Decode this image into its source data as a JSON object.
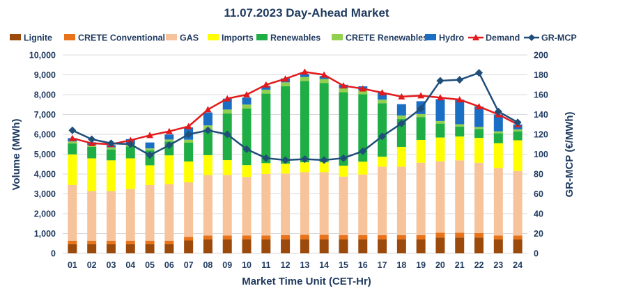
{
  "chart_data": {
    "type": "bar",
    "title": "11.07.2023  Day-Ahead Market",
    "xlabel": "Market Time Unit (CET-Hr)",
    "ylabel": "Volume (MWh)",
    "y2label": "GR-MCP (€/MWh)",
    "ylim": [
      0,
      10000
    ],
    "y2lim": [
      0,
      200
    ],
    "yticks": [
      "0",
      "1,000",
      "2,000",
      "3,000",
      "4,000",
      "5,000",
      "6,000",
      "7,000",
      "8,000",
      "9,000",
      "10,000"
    ],
    "y2ticks": [
      "0",
      "20",
      "40",
      "60",
      "80",
      "100",
      "120",
      "140",
      "160",
      "180",
      "200"
    ],
    "legend_position": "top",
    "categories": [
      "01",
      "02",
      "03",
      "04",
      "05",
      "06",
      "07",
      "08",
      "09",
      "10",
      "11",
      "12",
      "13",
      "14",
      "15",
      "16",
      "17",
      "18",
      "19",
      "20",
      "21",
      "22",
      "23",
      "24"
    ],
    "series": [
      {
        "name": "Lignite",
        "color": "#9c4a0c",
        "values": [
          460,
          460,
          460,
          460,
          460,
          460,
          650,
          700,
          700,
          700,
          700,
          700,
          700,
          700,
          700,
          700,
          700,
          700,
          700,
          800,
          800,
          800,
          700,
          700
        ]
      },
      {
        "name": "CRETE Conventional",
        "color": "#e8731a",
        "values": [
          180,
          180,
          180,
          180,
          180,
          180,
          180,
          200,
          200,
          200,
          200,
          220,
          240,
          240,
          220,
          220,
          220,
          220,
          220,
          240,
          240,
          220,
          200,
          200
        ]
      },
      {
        "name": "GAS",
        "color": "#f7c39a",
        "values": [
          2800,
          2500,
          2500,
          2600,
          2800,
          2850,
          2750,
          3050,
          3050,
          2950,
          3100,
          3100,
          3150,
          3150,
          2950,
          3050,
          3450,
          3450,
          3650,
          3600,
          3650,
          3550,
          3400,
          3250
        ]
      },
      {
        "name": "Imports",
        "color": "#ffff00",
        "values": [
          1550,
          1650,
          1550,
          1550,
          1000,
          1450,
          1050,
          1000,
          750,
          600,
          550,
          500,
          500,
          500,
          550,
          650,
          500,
          1000,
          1150,
          1200,
          1200,
          1250,
          1250,
          1550
        ]
      },
      {
        "name": "Renewables",
        "color": "#1fad45",
        "values": [
          550,
          580,
          550,
          600,
          750,
          700,
          950,
          1300,
          2350,
          2850,
          3500,
          3900,
          4100,
          4000,
          3700,
          3400,
          2700,
          1400,
          1150,
          700,
          500,
          450,
          500,
          450
        ]
      },
      {
        "name": "CRETE Renewables",
        "color": "#92d050",
        "values": [
          100,
          100,
          100,
          100,
          100,
          100,
          150,
          200,
          200,
          200,
          200,
          200,
          200,
          200,
          200,
          200,
          180,
          180,
          150,
          130,
          120,
          100,
          100,
          100
        ]
      },
      {
        "name": "Hydro",
        "color": "#1a6fc4",
        "values": [
          170,
          130,
          120,
          270,
          300,
          250,
          620,
          650,
          550,
          350,
          200,
          200,
          150,
          150,
          180,
          200,
          350,
          570,
          650,
          1100,
          1240,
          1030,
          850,
          250
        ]
      }
    ],
    "lines": [
      {
        "name": "Demand",
        "color": "#e31a1c",
        "marker": "triangle",
        "axis": "left",
        "values": [
          5800,
          5550,
          5500,
          5700,
          5950,
          6150,
          6400,
          7250,
          7800,
          8000,
          8500,
          8800,
          9150,
          9000,
          8450,
          8300,
          8100,
          7900,
          7950,
          7850,
          7750,
          7400,
          7000,
          6500
        ]
      },
      {
        "name": "GR-MCP",
        "color": "#1f4e79",
        "marker": "diamond",
        "axis": "right",
        "values": [
          124,
          115,
          111,
          110,
          99,
          109,
          120,
          124,
          120,
          105,
          96,
          94,
          95,
          94,
          96,
          103,
          118,
          131,
          146,
          174,
          175,
          182,
          143,
          132
        ]
      }
    ]
  }
}
